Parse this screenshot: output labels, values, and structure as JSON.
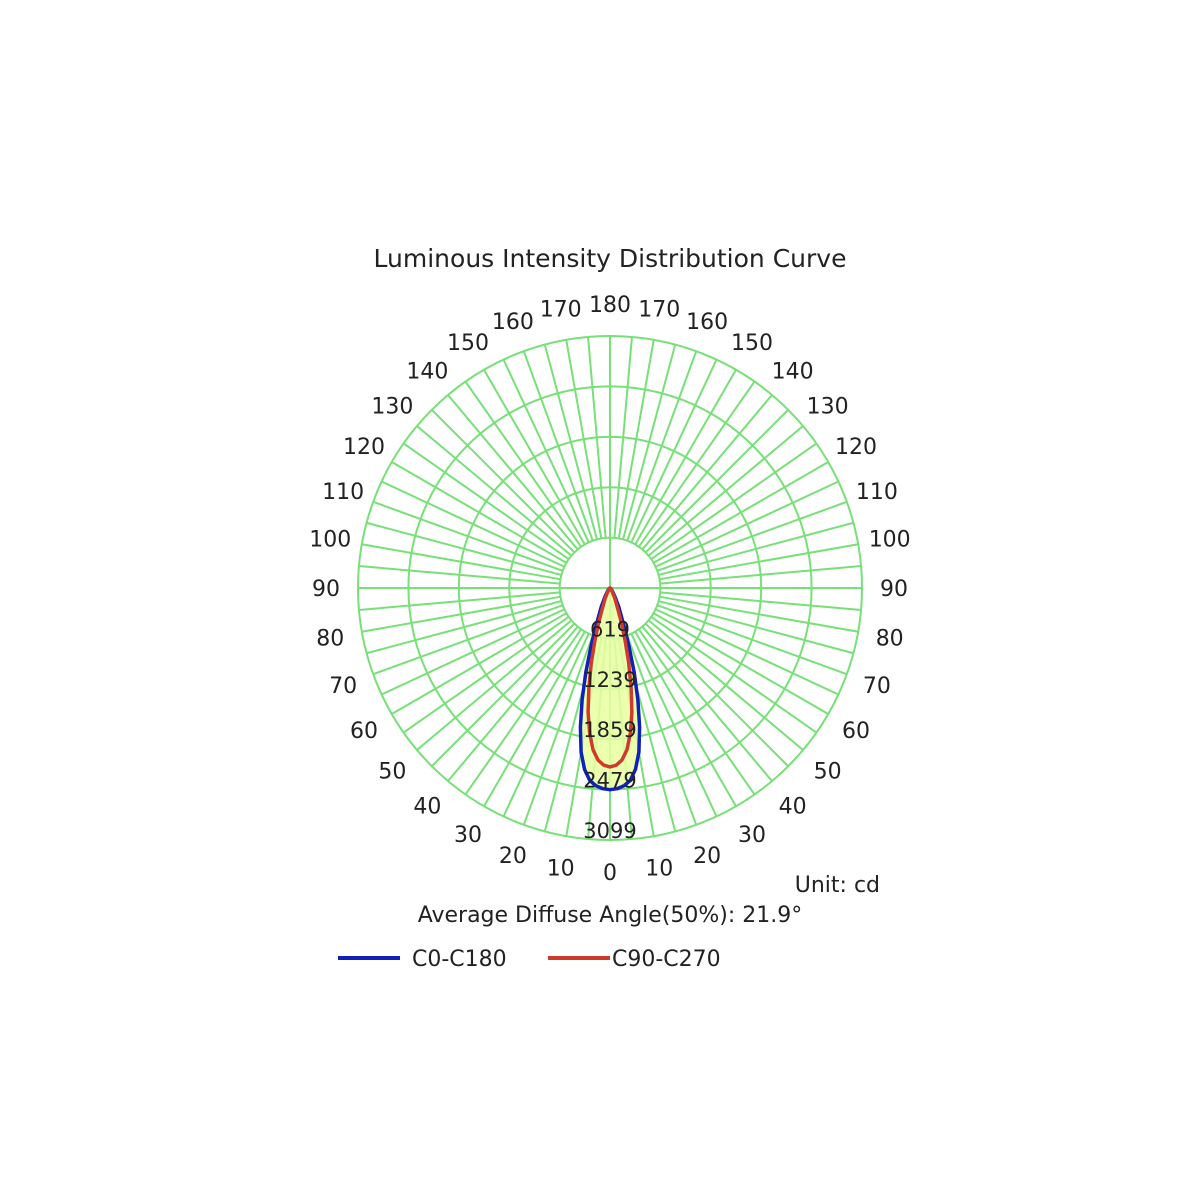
{
  "chart_data": {
    "type": "polar-line",
    "title": "Luminous Intensity Distribution Curve",
    "unit": "Unit: cd",
    "note": "Average Diffuse Angle(50%): 21.9°",
    "r_max": 3099,
    "ring_values": [
      619,
      1239,
      1859,
      2479,
      3099
    ],
    "angle_labels_left": [
      "0",
      "10",
      "20",
      "30",
      "40",
      "50",
      "60",
      "70",
      "80",
      "90",
      "100",
      "110",
      "120",
      "130",
      "140",
      "150",
      "160",
      "170",
      "180"
    ],
    "angle_labels_right": [
      "10",
      "20",
      "30",
      "40",
      "50",
      "60",
      "70",
      "80",
      "90",
      "100",
      "110",
      "120",
      "130",
      "140",
      "150",
      "160",
      "170"
    ],
    "series": [
      {
        "name": "C0-C180",
        "color": "#1020b8",
        "angles_left": [
          0,
          2,
          4,
          6,
          8,
          10,
          12,
          14,
          16,
          18,
          20,
          25,
          30,
          40,
          60,
          90
        ],
        "values_left": [
          2480,
          2470,
          2440,
          2380,
          2250,
          2050,
          1750,
          1420,
          1080,
          760,
          520,
          250,
          120,
          40,
          10,
          0
        ],
        "angles_right": [
          0,
          2,
          4,
          6,
          8,
          10,
          12,
          14,
          16,
          18,
          20,
          25,
          30,
          40,
          60,
          90
        ],
        "values_right": [
          2480,
          2470,
          2440,
          2380,
          2250,
          2050,
          1750,
          1420,
          1080,
          760,
          520,
          250,
          120,
          40,
          10,
          0
        ]
      },
      {
        "name": "C90-C270",
        "color": "#d03a2a",
        "angles_left": [
          0,
          2,
          4,
          6,
          8,
          10,
          12,
          14,
          16,
          18,
          20,
          25,
          30,
          40,
          60,
          90
        ],
        "values_left": [
          2200,
          2180,
          2120,
          2000,
          1800,
          1550,
          1250,
          950,
          680,
          460,
          300,
          140,
          60,
          20,
          5,
          0
        ],
        "angles_right": [
          0,
          2,
          4,
          6,
          8,
          10,
          12,
          14,
          16,
          18,
          20,
          25,
          30,
          40,
          60,
          90
        ],
        "values_right": [
          2200,
          2180,
          2120,
          2000,
          1800,
          1550,
          1250,
          950,
          680,
          460,
          300,
          140,
          60,
          20,
          5,
          0
        ]
      }
    ],
    "fill_color": "#e8ffa0",
    "grid_color": "#77e077"
  }
}
